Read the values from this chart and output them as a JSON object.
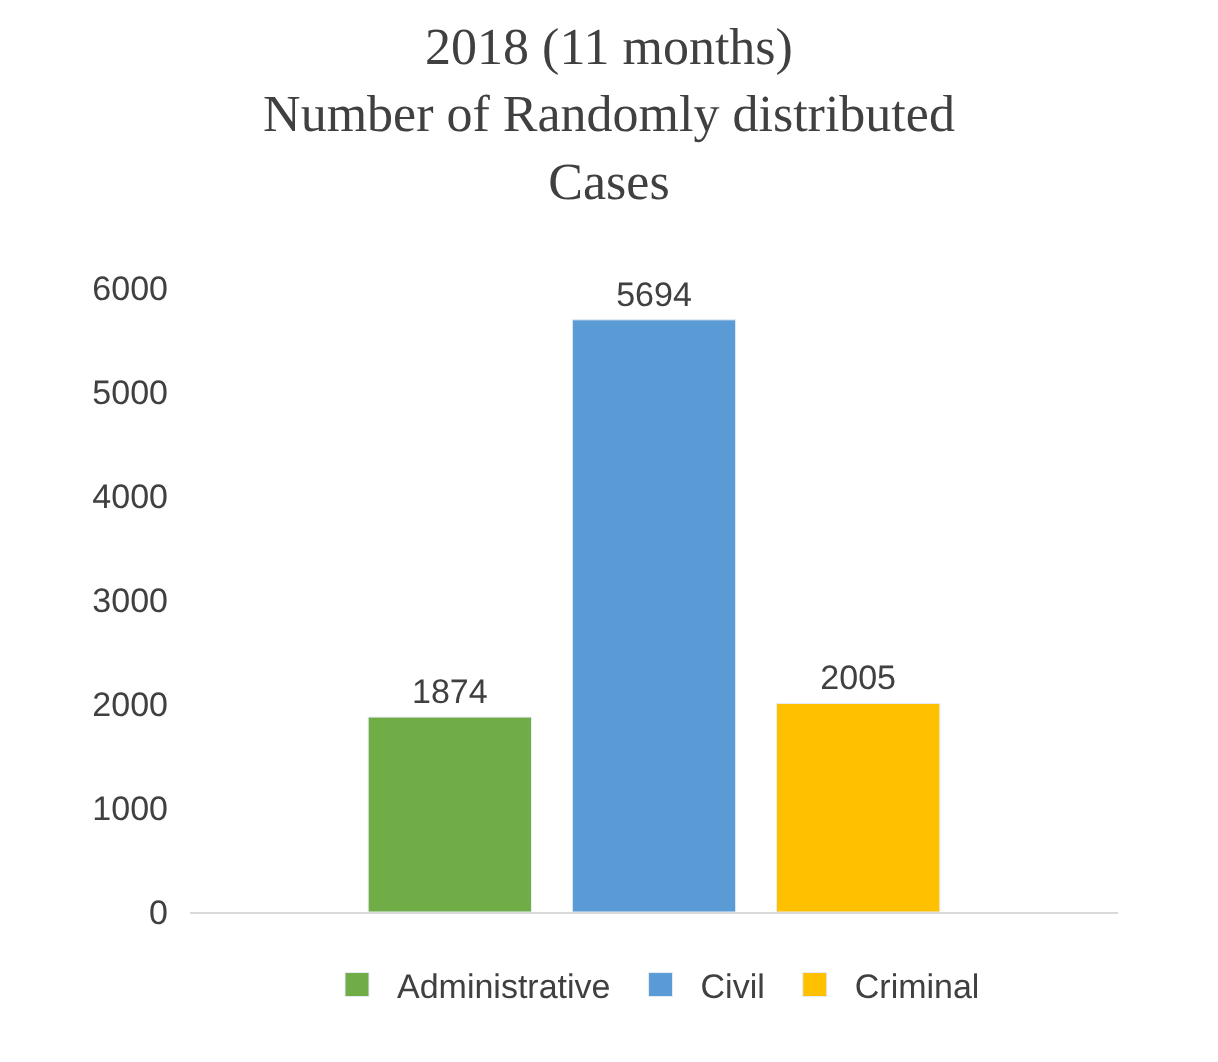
{
  "chart_data": {
    "type": "bar",
    "title": "2018 (11 months)\nNumber of Randomly distributed\nCases",
    "categories": [
      null
    ],
    "series": [
      {
        "name": "Administrative",
        "color": "#70ad47",
        "values": [
          1874
        ]
      },
      {
        "name": "Civil",
        "color": "#5b9bd5",
        "values": [
          5694
        ]
      },
      {
        "name": "Criminal",
        "color": "#ffc000",
        "values": [
          2005
        ]
      }
    ],
    "ylim": [
      0,
      6000
    ],
    "yticks": [
      0,
      1000,
      2000,
      3000,
      4000,
      5000,
      6000
    ],
    "grid": false,
    "legend": "bottom",
    "data_labels": true
  }
}
